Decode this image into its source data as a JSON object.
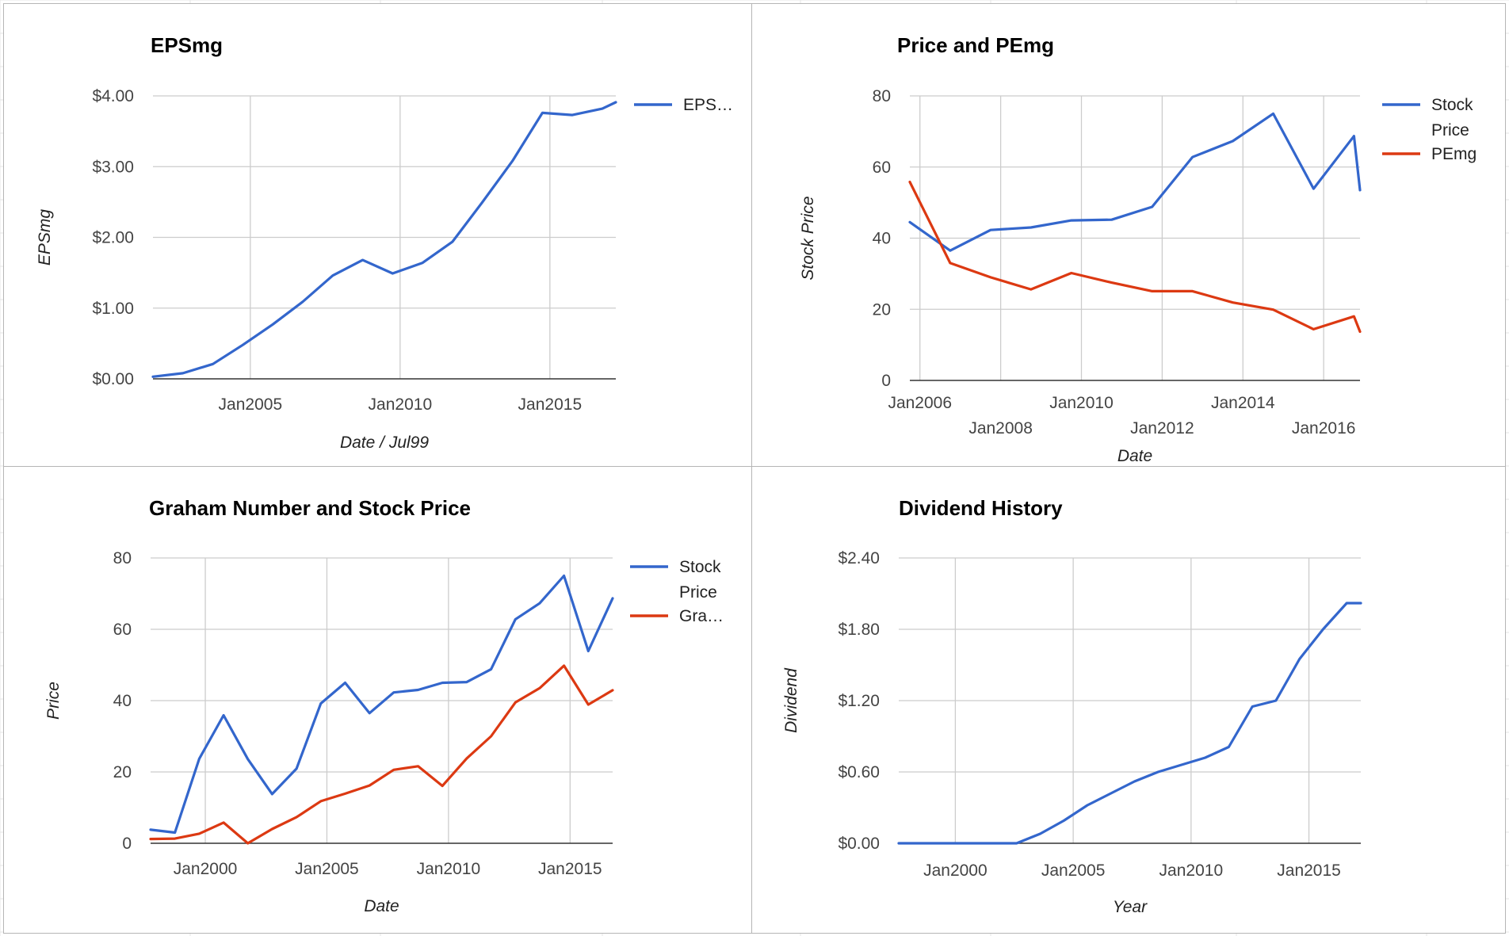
{
  "colors": {
    "blue": "#3366cc",
    "red": "#dc3912",
    "grid": "#cccccc",
    "border": "#b5b5b5"
  },
  "chart_data": [
    {
      "type": "line",
      "title": "EPSmg",
      "xlabel": "Date / Jul99",
      "ylabel": "EPSmg",
      "x_type": "year",
      "xlim": [
        2001.75,
        2017.2
      ],
      "ylim": [
        0,
        4
      ],
      "y_ticks": [
        0,
        1,
        2,
        3,
        4
      ],
      "y_tick_labels": [
        "$0.00",
        "$1.00",
        "$2.00",
        "$3.00",
        "$4.00"
      ],
      "x_ticks": [
        2005,
        2010,
        2015
      ],
      "x_tick_labels": [
        "Jan2005",
        "Jan2010",
        "Jan2015"
      ],
      "legend_position": "right",
      "legend": [
        {
          "label": "EPS…",
          "color": "#3366cc"
        }
      ],
      "series": [
        {
          "name": "EPSmg",
          "color": "#3366cc",
          "x": [
            2001.75,
            2002.75,
            2003.75,
            2004.75,
            2005.75,
            2006.75,
            2007.75,
            2008.75,
            2009.75,
            2010.75,
            2011.75,
            2012.75,
            2013.75,
            2014.75,
            2015.75,
            2016.75,
            2017.2
          ],
          "y": [
            0.03,
            0.08,
            0.21,
            0.48,
            0.77,
            1.09,
            1.46,
            1.68,
            1.49,
            1.64,
            1.94,
            2.5,
            3.08,
            3.76,
            3.73,
            3.82,
            3.91
          ]
        }
      ]
    },
    {
      "type": "line",
      "title": "Price and PEmg",
      "xlabel": "Date",
      "ylabel": "Stock Price",
      "x_type": "year",
      "xlim": [
        2005.75,
        2016.9
      ],
      "ylim": [
        0,
        80
      ],
      "y_ticks": [
        0,
        20,
        40,
        60,
        80
      ],
      "y_tick_labels": [
        "0",
        "20",
        "40",
        "60",
        "80"
      ],
      "x_ticks": [
        2006,
        2008,
        2010,
        2012,
        2014,
        2016
      ],
      "x_tick_labels": [
        "Jan2006",
        "Jan2008",
        "Jan2010",
        "Jan2012",
        "Jan2014",
        "Jan2016"
      ],
      "legend_position": "right",
      "legend": [
        {
          "label": "Stock Price",
          "color": "#3366cc"
        },
        {
          "label": "PEmg",
          "color": "#dc3912"
        }
      ],
      "series": [
        {
          "name": "Stock Price",
          "color": "#3366cc",
          "x": [
            2005.75,
            2006.75,
            2007.75,
            2008.75,
            2009.75,
            2010.75,
            2011.75,
            2012.75,
            2013.75,
            2014.75,
            2015.75,
            2016.75,
            2016.9
          ],
          "y": [
            44.5,
            36.5,
            42.3,
            43.0,
            45.0,
            45.2,
            48.8,
            62.8,
            67.3,
            75.0,
            53.9,
            68.7,
            53.5
          ]
        },
        {
          "name": "PEmg",
          "color": "#dc3912",
          "x": [
            2005.75,
            2006.75,
            2007.75,
            2008.75,
            2009.75,
            2010.75,
            2011.75,
            2012.75,
            2013.75,
            2014.75,
            2015.75,
            2016.75,
            2016.9
          ],
          "y": [
            55.8,
            33.0,
            29.0,
            25.6,
            30.2,
            27.5,
            25.1,
            25.1,
            21.9,
            19.9,
            14.4,
            18.0,
            13.7
          ]
        }
      ]
    },
    {
      "type": "line",
      "title": "Graham Number and Stock Price",
      "xlabel": "Date",
      "ylabel": "Price",
      "x_type": "year",
      "xlim": [
        1997.75,
        2016.75
      ],
      "ylim": [
        0,
        80
      ],
      "y_ticks": [
        0,
        20,
        40,
        60,
        80
      ],
      "y_tick_labels": [
        "0",
        "20",
        "40",
        "60",
        "80"
      ],
      "x_ticks": [
        2000,
        2005,
        2010,
        2015
      ],
      "x_tick_labels": [
        "Jan2000",
        "Jan2005",
        "Jan2010",
        "Jan2015"
      ],
      "legend_position": "right",
      "legend": [
        {
          "label": "Stock Price",
          "color": "#3366cc"
        },
        {
          "label": "Gra…",
          "color": "#dc3912"
        }
      ],
      "series": [
        {
          "name": "Stock Price",
          "color": "#3366cc",
          "x": [
            1997.75,
            1998.75,
            1999.75,
            2000.75,
            2001.75,
            2002.75,
            2003.75,
            2004.75,
            2005.75,
            2006.75,
            2007.75,
            2008.75,
            2009.75,
            2010.75,
            2011.75,
            2012.75,
            2013.75,
            2014.75,
            2015.75,
            2016.75
          ],
          "y": [
            3.8,
            3.0,
            23.7,
            35.9,
            23.6,
            13.8,
            20.9,
            39.2,
            45.0,
            36.5,
            42.3,
            43.0,
            45.0,
            45.2,
            48.8,
            62.8,
            67.3,
            75.0,
            53.9,
            68.7
          ]
        },
        {
          "name": "Graham Number",
          "color": "#dc3912",
          "x": [
            1997.75,
            1998.75,
            1999.75,
            2000.75,
            2001.75,
            2002.75,
            2003.75,
            2004.75,
            2005.75,
            2006.75,
            2007.75,
            2008.75,
            2009.75,
            2010.75,
            2011.75,
            2012.75,
            2013.75,
            2014.75,
            2015.75,
            2016.75
          ],
          "y": [
            1.2,
            1.3,
            2.7,
            5.8,
            0.0,
            4.0,
            7.3,
            11.8,
            13.9,
            16.2,
            20.6,
            21.6,
            16.1,
            23.8,
            30.0,
            39.5,
            43.5,
            49.8,
            38.9,
            42.9
          ]
        }
      ]
    },
    {
      "type": "line",
      "title": "Dividend History",
      "xlabel": "Year",
      "ylabel": "Dividend",
      "x_type": "year",
      "xlim": [
        1997.6,
        2017.2
      ],
      "ylim": [
        0,
        2.4
      ],
      "y_ticks": [
        0,
        0.6,
        1.2,
        1.8,
        2.4
      ],
      "y_tick_labels": [
        "$0.00",
        "$0.60",
        "$1.20",
        "$1.80",
        "$2.40"
      ],
      "x_ticks": [
        2000,
        2005,
        2010,
        2015
      ],
      "x_tick_labels": [
        "Jan2000",
        "Jan2005",
        "Jan2010",
        "Jan2015"
      ],
      "legend_position": "none",
      "legend": [],
      "series": [
        {
          "name": "Dividend",
          "color": "#3366cc",
          "x": [
            1997.6,
            2002.6,
            2003.6,
            2004.6,
            2005.6,
            2006.6,
            2007.6,
            2008.6,
            2009.6,
            2010.6,
            2011.6,
            2012.6,
            2013.6,
            2014.6,
            2015.6,
            2016.6,
            2017.2
          ],
          "y": [
            0.0,
            0.0,
            0.08,
            0.19,
            0.32,
            0.42,
            0.52,
            0.6,
            0.66,
            0.72,
            0.81,
            1.15,
            1.2,
            1.55,
            1.8,
            2.02,
            2.02
          ]
        }
      ]
    }
  ]
}
